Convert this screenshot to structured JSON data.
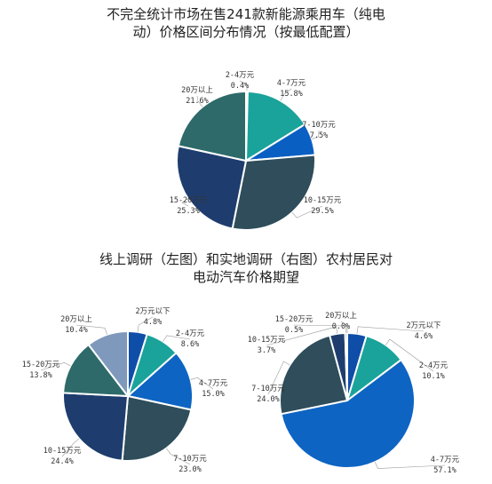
{
  "colors": {
    "teal_dark": "#1F8A85",
    "teal": "#1AA39A",
    "blue": "#0A5FC2",
    "slate": "#2F4D5A",
    "navy": "#1E3D6E",
    "gray_teal": "#2E6A6A",
    "light_blue": "#7F99BC",
    "bright_blue": "#0D64C3",
    "royal": "#0F4EA8"
  },
  "chart_data": [
    {
      "type": "pie",
      "title": "不完全统计市场在售241款新能源乘用车（纯电动）价格区间分布情况（按最低配置）",
      "title_lines": [
        "不完全统计市场在售241款新能源乘用车（纯电",
        "动）价格区间分布情况（按最低配置）"
      ],
      "slices": [
        {
          "name": "2-4万元",
          "pct_label": "0.4%",
          "value": 0.4,
          "color": "#1F8A85"
        },
        {
          "name": "4-7万元",
          "pct_label": "15.8%",
          "value": 15.8,
          "color": "#1AA39A"
        },
        {
          "name": "7-10万元",
          "pct_label": "7.5%",
          "value": 7.5,
          "color": "#0A5FC2"
        },
        {
          "name": "10-15万元",
          "pct_label": "29.5%",
          "value": 29.5,
          "color": "#2F4D5A"
        },
        {
          "name": "15-20万元",
          "pct_label": "25.3%",
          "value": 25.3,
          "color": "#1E3D6E"
        },
        {
          "name": "20万以上",
          "pct_label": "21.6%",
          "value": 21.6,
          "color": "#2E6A6A"
        }
      ]
    },
    {
      "type": "pie",
      "title": "线上调研（左图）和实地调研（右图）农村居民对电动汽车价格期望",
      "title_lines": [
        "线上调研（左图）和实地调研（右图）农村居民对",
        "电动汽车价格期望"
      ],
      "slices": [
        {
          "name": "2万元以下",
          "pct_label": "4.8%",
          "value": 4.8,
          "color": "#0F4EA8"
        },
        {
          "name": "2-4万元",
          "pct_label": "8.6%",
          "value": 8.6,
          "color": "#1AA39A"
        },
        {
          "name": "4-7万元",
          "pct_label": "15.0%",
          "value": 15.0,
          "color": "#0D64C3"
        },
        {
          "name": "7-10万元",
          "pct_label": "23.0%",
          "value": 23.0,
          "color": "#2F4D5A"
        },
        {
          "name": "10-15万元",
          "pct_label": "24.4%",
          "value": 24.4,
          "color": "#1E3D6E"
        },
        {
          "name": "15-20万元",
          "pct_label": "13.8%",
          "value": 13.8,
          "color": "#2E6A6A"
        },
        {
          "name": "20万以上",
          "pct_label": "10.4%",
          "value": 10.4,
          "color": "#7F99BC"
        }
      ]
    },
    {
      "type": "pie",
      "title": "",
      "slices": [
        {
          "name": "2万元以下",
          "pct_label": "4.6%",
          "value": 4.6,
          "color": "#0F4EA8"
        },
        {
          "name": "2-4万元",
          "pct_label": "10.1%",
          "value": 10.1,
          "color": "#1AA39A"
        },
        {
          "name": "4-7万元",
          "pct_label": "57.1%",
          "value": 57.1,
          "color": "#0D64C3"
        },
        {
          "name": "7-10万元",
          "pct_label": "24.0%",
          "value": 24.0,
          "color": "#2F4D5A"
        },
        {
          "name": "10-15万元",
          "pct_label": "3.7%",
          "value": 3.7,
          "color": "#1E3D6E"
        },
        {
          "name": "15-20万元",
          "pct_label": "0.5%",
          "value": 0.5,
          "color": "#2E6A6A"
        },
        {
          "name": "20万以上",
          "pct_label": "0.0%",
          "value": 0.0,
          "color": "#7F99BC"
        }
      ]
    }
  ]
}
